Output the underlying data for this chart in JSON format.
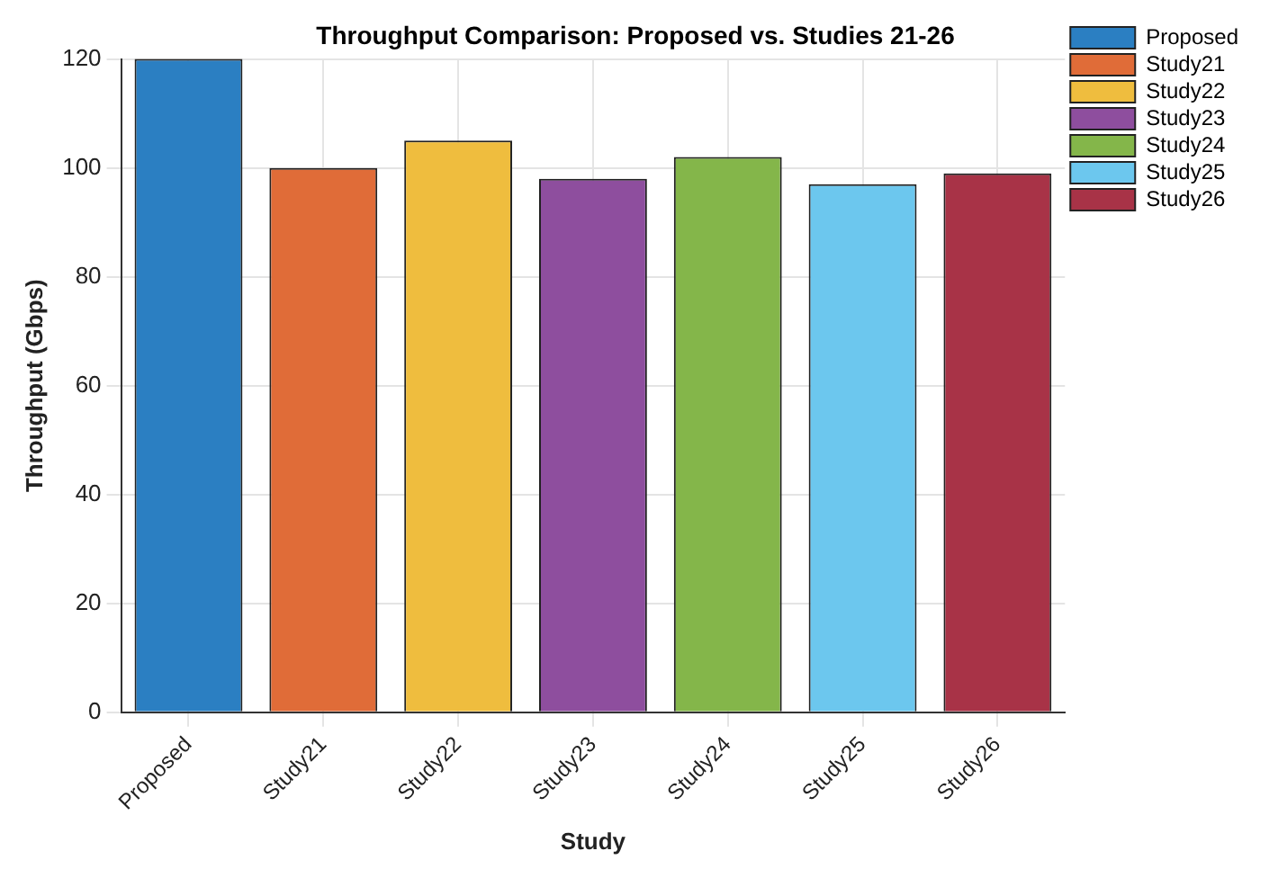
{
  "chart_data": {
    "type": "bar",
    "title": "Throughput Comparison: Proposed vs. Studies 21-26",
    "xlabel": "Study",
    "ylabel": "Throughput (Gbps)",
    "categories": [
      "Proposed",
      "Study21",
      "Study22",
      "Study23",
      "Study24",
      "Study25",
      "Study26"
    ],
    "series": [
      {
        "name": "Proposed",
        "color": "#2b7fc2",
        "values": [
          120,
          null,
          null,
          null,
          null,
          null,
          null
        ]
      },
      {
        "name": "Study21",
        "color": "#e06c38",
        "values": [
          null,
          100,
          null,
          null,
          null,
          null,
          null
        ]
      },
      {
        "name": "Study22",
        "color": "#efbd3e",
        "values": [
          null,
          null,
          105,
          null,
          null,
          null,
          null
        ]
      },
      {
        "name": "Study23",
        "color": "#8e4e9e",
        "values": [
          null,
          null,
          null,
          98,
          null,
          null,
          null
        ]
      },
      {
        "name": "Study24",
        "color": "#84b64a",
        "values": [
          null,
          null,
          null,
          null,
          102,
          null,
          null
        ]
      },
      {
        "name": "Study25",
        "color": "#6cc7ee",
        "values": [
          null,
          null,
          null,
          null,
          null,
          97,
          null
        ]
      },
      {
        "name": "Study26",
        "color": "#a83347",
        "values": [
          null,
          null,
          null,
          null,
          null,
          null,
          99
        ]
      }
    ],
    "ylim": [
      0,
      120
    ],
    "yticks": [
      0,
      20,
      40,
      60,
      80,
      100,
      120
    ],
    "grid": true,
    "legend": "top right"
  }
}
